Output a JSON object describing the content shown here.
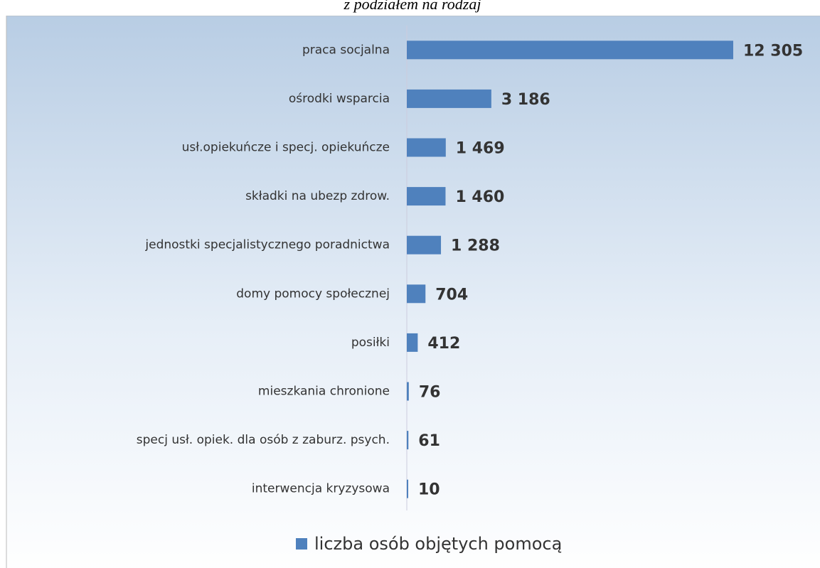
{
  "chart_data": {
    "type": "bar",
    "orientation": "horizontal",
    "title": "z podziałem na rodzaj",
    "categories": [
      "praca socjalna",
      "ośrodki wsparcia",
      "usł.opiekuńcze i specj. opiekuńcze",
      "składki na ubezp zdrow.",
      "jednostki specjalistycznego poradnictwa",
      "domy pomocy społecznej",
      "posiłki",
      "mieszkania chronione",
      "specj usł. opiek. dla osób z zaburz. psych.",
      "interwencja kryzysowa"
    ],
    "series": [
      {
        "name": "liczba osób objętych pomocą",
        "color": "#4f81bd",
        "values": [
          12305,
          3186,
          1469,
          1460,
          1288,
          704,
          412,
          76,
          61,
          10
        ],
        "value_labels": [
          "12 305",
          "3 186",
          "1 469",
          "1 460",
          "1 288",
          "704",
          "412",
          "76",
          "61",
          "10"
        ]
      }
    ],
    "xlim": [
      0,
      12305
    ],
    "legend": "bottom"
  }
}
